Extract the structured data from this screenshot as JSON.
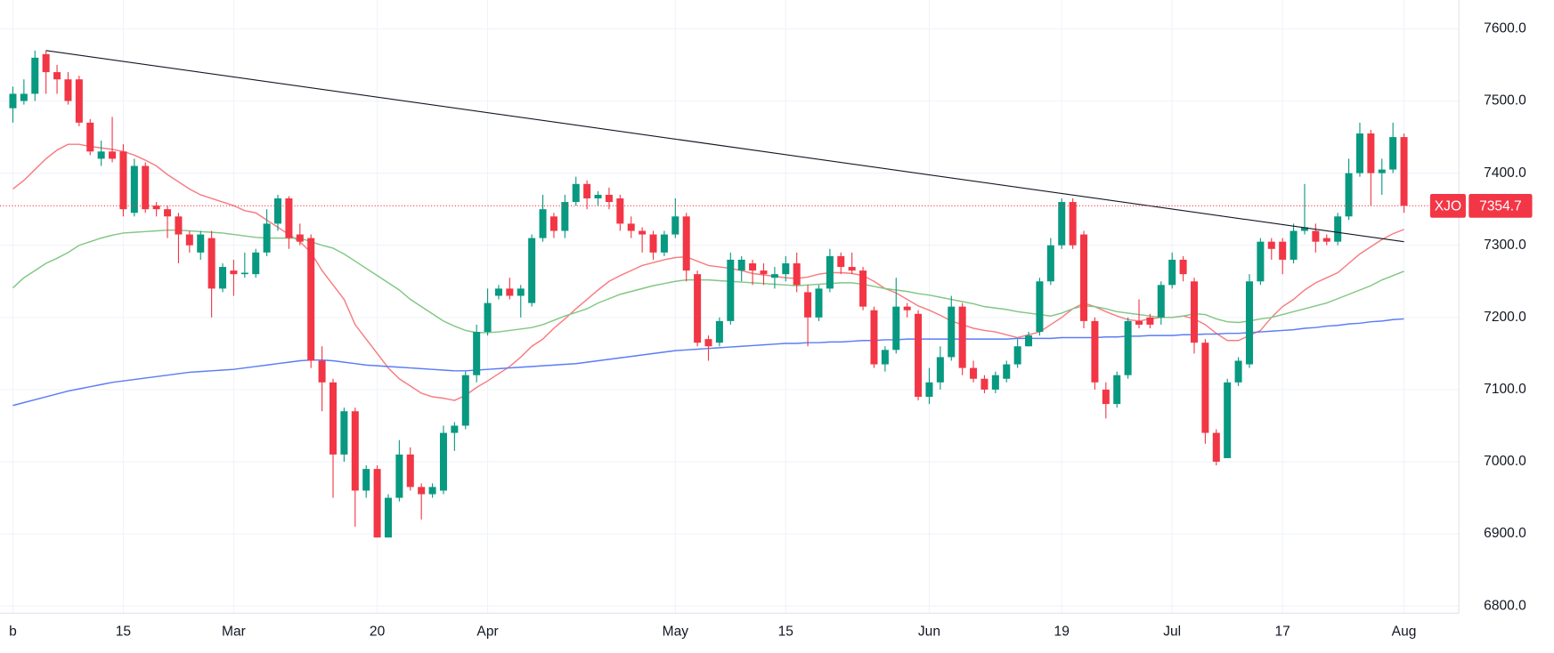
{
  "chart_data": {
    "type": "candlestick",
    "categories": [
      "b",
      null,
      null,
      null,
      null,
      null,
      null,
      null,
      null,
      null,
      "15",
      null,
      null,
      null,
      null,
      null,
      null,
      null,
      null,
      null,
      "Mar",
      null,
      null,
      null,
      null,
      null,
      null,
      null,
      null,
      null,
      null,
      null,
      null,
      "20",
      null,
      null,
      null,
      null,
      null,
      null,
      null,
      null,
      null,
      "Apr",
      null,
      null,
      null,
      null,
      null,
      null,
      null,
      null,
      null,
      null,
      null,
      null,
      null,
      null,
      null,
      null,
      "May",
      null,
      null,
      null,
      null,
      null,
      null,
      null,
      null,
      null,
      "15",
      null,
      null,
      null,
      null,
      null,
      null,
      null,
      null,
      null,
      null,
      null,
      null,
      "Jun",
      null,
      null,
      null,
      null,
      null,
      null,
      null,
      null,
      null,
      null,
      null,
      "19",
      null,
      null,
      null,
      null,
      null,
      null,
      null,
      null,
      null,
      "Jul",
      null,
      null,
      null,
      null,
      null,
      null,
      null,
      null,
      null,
      "17",
      null,
      null,
      null,
      null,
      null,
      null,
      null,
      null,
      null,
      null,
      "Aug"
    ],
    "open": [
      7490,
      7500,
      7510,
      7565,
      7540,
      7530,
      7530,
      7470,
      7420,
      7430,
      7430,
      7345,
      7410,
      7355,
      7350,
      7340,
      7315,
      7290,
      7310,
      7240,
      7265,
      7260,
      7260,
      7290,
      7330,
      7365,
      7315,
      7310,
      7140,
      7110,
      7010,
      7070,
      6960,
      6990,
      6895,
      6950,
      7010,
      6965,
      6955,
      6960,
      7040,
      7050,
      7120,
      7180,
      7230,
      7240,
      7230,
      7220,
      7310,
      7340,
      7320,
      7360,
      7385,
      7365,
      7370,
      7365,
      7330,
      7320,
      7315,
      7290,
      7315,
      7340,
      7260,
      7170,
      7165,
      7195,
      7265,
      7275,
      7265,
      7255,
      7260,
      7275,
      7235,
      7200,
      7240,
      7285,
      7270,
      7265,
      7210,
      7135,
      7155,
      7215,
      7205,
      7090,
      7110,
      7145,
      7215,
      7130,
      7115,
      7100,
      7115,
      7135,
      7160,
      7180,
      7250,
      7300,
      7360,
      7315,
      7195,
      7100,
      7080,
      7120,
      7195,
      7200,
      7200,
      7245,
      7280,
      7250,
      7165,
      7040,
      7005,
      7110,
      7135,
      7250,
      7305,
      7305,
      7280,
      7320,
      7320,
      7310,
      7305,
      7340,
      7400,
      7455,
      7400,
      7405,
      7450
    ],
    "high": [
      7520,
      7530,
      7570,
      7570,
      7550,
      7540,
      7535,
      7475,
      7445,
      7478,
      7440,
      7420,
      7415,
      7360,
      7355,
      7345,
      7320,
      7320,
      7320,
      7275,
      7280,
      7290,
      7295,
      7350,
      7370,
      7368,
      7330,
      7315,
      7160,
      7115,
      7075,
      7075,
      6995,
      6995,
      6955,
      7030,
      7020,
      6970,
      6970,
      7050,
      7055,
      7125,
      7190,
      7240,
      7245,
      7255,
      7245,
      7315,
      7370,
      7345,
      7370,
      7395,
      7390,
      7375,
      7380,
      7370,
      7340,
      7325,
      7320,
      7320,
      7365,
      7345,
      7265,
      7175,
      7200,
      7290,
      7285,
      7280,
      7275,
      7270,
      7285,
      7290,
      7245,
      7245,
      7295,
      7290,
      7290,
      7270,
      7215,
      7160,
      7255,
      7220,
      7210,
      7130,
      7160,
      7230,
      7220,
      7140,
      7120,
      7125,
      7140,
      7170,
      7180,
      7255,
      7310,
      7365,
      7365,
      7320,
      7200,
      7110,
      7125,
      7200,
      7225,
      7205,
      7250,
      7290,
      7285,
      7255,
      7170,
      7045,
      7115,
      7145,
      7260,
      7310,
      7310,
      7310,
      7330,
      7385,
      7330,
      7315,
      7345,
      7420,
      7470,
      7460,
      7420,
      7470,
      7455
    ],
    "low": [
      7470,
      7495,
      7500,
      7510,
      7510,
      7495,
      7465,
      7425,
      7410,
      7415,
      7340,
      7340,
      7345,
      7340,
      7310,
      7275,
      7290,
      7280,
      7200,
      7235,
      7230,
      7255,
      7255,
      7285,
      7320,
      7295,
      7300,
      7130,
      7070,
      6950,
      7000,
      6910,
      6950,
      6895,
      6895,
      6945,
      6960,
      6920,
      6950,
      6955,
      7015,
      7045,
      7110,
      7175,
      7225,
      7225,
      7200,
      7215,
      7305,
      7310,
      7310,
      7355,
      7350,
      7355,
      7350,
      7320,
      7310,
      7290,
      7280,
      7285,
      7310,
      7250,
      7160,
      7140,
      7160,
      7190,
      7250,
      7245,
      7245,
      7240,
      7250,
      7235,
      7160,
      7195,
      7235,
      7260,
      7260,
      7210,
      7130,
      7125,
      7150,
      7200,
      7085,
      7080,
      7100,
      7140,
      7120,
      7110,
      7095,
      7095,
      7110,
      7130,
      7160,
      7175,
      7245,
      7295,
      7295,
      7185,
      7100,
      7060,
      7075,
      7115,
      7185,
      7185,
      7190,
      7240,
      7250,
      7150,
      7025,
      6995,
      7005,
      7105,
      7130,
      7245,
      7280,
      7260,
      7275,
      7315,
      7290,
      7300,
      7300,
      7335,
      7395,
      7355,
      7370,
      7400,
      7345
    ],
    "close": [
      7510,
      7510,
      7560,
      7540,
      7530,
      7500,
      7470,
      7430,
      7430,
      7420,
      7350,
      7410,
      7350,
      7350,
      7340,
      7315,
      7300,
      7315,
      7240,
      7270,
      7260,
      7262,
      7290,
      7330,
      7365,
      7310,
      7305,
      7140,
      7110,
      7010,
      7070,
      6960,
      6990,
      6895,
      6950,
      7010,
      6965,
      6955,
      6965,
      7040,
      7050,
      7120,
      7180,
      7220,
      7240,
      7230,
      7240,
      7310,
      7350,
      7320,
      7360,
      7385,
      7365,
      7370,
      7360,
      7330,
      7320,
      7315,
      7290,
      7315,
      7340,
      7265,
      7165,
      7160,
      7195,
      7280,
      7280,
      7265,
      7260,
      7260,
      7275,
      7245,
      7200,
      7240,
      7285,
      7270,
      7265,
      7215,
      7135,
      7155,
      7215,
      7210,
      7090,
      7110,
      7145,
      7215,
      7130,
      7115,
      7100,
      7120,
      7135,
      7160,
      7175,
      7250,
      7300,
      7360,
      7300,
      7195,
      7110,
      7080,
      7120,
      7195,
      7190,
      7190,
      7245,
      7280,
      7260,
      7165,
      7040,
      7000,
      7110,
      7140,
      7250,
      7305,
      7295,
      7280,
      7320,
      7325,
      7305,
      7305,
      7340,
      7400,
      7455,
      7400,
      7405,
      7450,
      7354.7
    ],
    "up_color": "#089981",
    "down_color": "#f23645",
    "overlays": [
      {
        "color": "#f77c80",
        "values": [
          7378,
          7390,
          7405,
          7420,
          7432,
          7440,
          7440,
          7437,
          7435,
          7433,
          7430,
          7425,
          7418,
          7410,
          7398,
          7388,
          7378,
          7370,
          7365,
          7360,
          7355,
          7348,
          7345,
          7335,
          7325,
          7315,
          7305,
          7290,
          7265,
          7245,
          7225,
          7190,
          7170,
          7150,
          7130,
          7115,
          7105,
          7095,
          7090,
          7088,
          7085,
          7092,
          7103,
          7112,
          7122,
          7132,
          7145,
          7160,
          7170,
          7185,
          7198,
          7212,
          7225,
          7238,
          7250,
          7258,
          7265,
          7272,
          7276,
          7280,
          7283,
          7284,
          7278,
          7272,
          7270,
          7268,
          7265,
          7261,
          7259,
          7257,
          7255,
          7254,
          7256,
          7260,
          7262,
          7262,
          7261,
          7258,
          7250,
          7240,
          7234,
          7225,
          7216,
          7210,
          7203,
          7195,
          7190,
          7185,
          7182,
          7180,
          7176,
          7172,
          7176,
          7180,
          7190,
          7200,
          7212,
          7220,
          7215,
          7208,
          7202,
          7197,
          7195,
          7198,
          7200,
          7200,
          7202,
          7198,
          7190,
          7178,
          7168,
          7168,
          7175,
          7182,
          7200,
          7215,
          7225,
          7238,
          7248,
          7255,
          7262,
          7275,
          7288,
          7298,
          7308,
          7316,
          7322
        ]
      },
      {
        "color": "#81c784",
        "values": [
          7241,
          7255,
          7265,
          7275,
          7282,
          7290,
          7300,
          7305,
          7310,
          7314,
          7317,
          7318,
          7319,
          7320,
          7321,
          7321,
          7320,
          7319,
          7318,
          7317,
          7315,
          7313,
          7311,
          7310,
          7310,
          7310,
          7310,
          7305,
          7300,
          7296,
          7288,
          7278,
          7268,
          7258,
          7248,
          7238,
          7225,
          7215,
          7205,
          7195,
          7188,
          7182,
          7179,
          7179,
          7180,
          7182,
          7184,
          7186,
          7190,
          7196,
          7202,
          7207,
          7212,
          7220,
          7226,
          7232,
          7236,
          7240,
          7244,
          7247,
          7250,
          7252,
          7252,
          7252,
          7251,
          7250,
          7249,
          7248,
          7247,
          7246,
          7245,
          7244,
          7245,
          7246,
          7247,
          7248,
          7248,
          7246,
          7243,
          7240,
          7238,
          7236,
          7233,
          7231,
          7228,
          7225,
          7222,
          7219,
          7215,
          7213,
          7211,
          7208,
          7206,
          7204,
          7202,
          7206,
          7212,
          7216,
          7215,
          7212,
          7208,
          7206,
          7204,
          7202,
          7200,
          7200,
          7202,
          7205,
          7204,
          7198,
          7194,
          7193,
          7195,
          7198,
          7200,
          7204,
          7208,
          7212,
          7216,
          7220,
          7226,
          7232,
          7238,
          7244,
          7252,
          7258,
          7264
        ]
      },
      {
        "color": "#5b7cf5",
        "values": [
          7078,
          7082,
          7086,
          7090,
          7094,
          7098,
          7101,
          7104,
          7107,
          7110,
          7112,
          7114,
          7116,
          7118,
          7120,
          7122,
          7124,
          7125,
          7126,
          7127,
          7128,
          7130,
          7132,
          7134,
          7136,
          7138,
          7140,
          7141,
          7141,
          7140,
          7138,
          7136,
          7134,
          7133,
          7132,
          7131,
          7130,
          7129,
          7128,
          7127,
          7126,
          7126,
          7127,
          7128,
          7129,
          7130,
          7131,
          7132,
          7133,
          7134,
          7135,
          7136,
          7138,
          7140,
          7142,
          7144,
          7146,
          7148,
          7150,
          7152,
          7154,
          7155,
          7156,
          7157,
          7158,
          7159,
          7160,
          7161,
          7162,
          7163,
          7164,
          7164,
          7165,
          7165,
          7166,
          7166,
          7167,
          7168,
          7168,
          7169,
          7169,
          7170,
          7170,
          7170,
          7170,
          7170,
          7170,
          7170,
          7170,
          7170,
          7170,
          7171,
          7171,
          7171,
          7171,
          7172,
          7172,
          7172,
          7172,
          7173,
          7173,
          7174,
          7174,
          7175,
          7175,
          7175,
          7176,
          7176,
          7177,
          7177,
          7178,
          7178,
          7179,
          7180,
          7181,
          7182,
          7183,
          7185,
          7186,
          7188,
          7189,
          7191,
          7192,
          7194,
          7195,
          7197,
          7198
        ]
      }
    ],
    "trendline": {
      "color": "#131722",
      "from": {
        "category": 3,
        "value": 7570
      },
      "to": {
        "category": 126,
        "value": 7305
      }
    },
    "last_price": {
      "symbol": "XJO",
      "value": 7354.7,
      "color": "#f23645"
    },
    "ylim": [
      6790,
      7640
    ],
    "yticks": [
      {
        "value": 6800,
        "label": "6800.0"
      },
      {
        "value": 6900,
        "label": "6900.0"
      },
      {
        "value": 7000,
        "label": "7000.0"
      },
      {
        "value": 7100,
        "label": "7100.0"
      },
      {
        "value": 7200,
        "label": "7200.0"
      },
      {
        "value": 7300,
        "label": "7300.0"
      },
      {
        "value": 7400,
        "label": "7400.0"
      },
      {
        "value": 7500,
        "label": "7500.0"
      },
      {
        "value": 7600,
        "label": "7600.0"
      }
    ],
    "grid": true
  }
}
